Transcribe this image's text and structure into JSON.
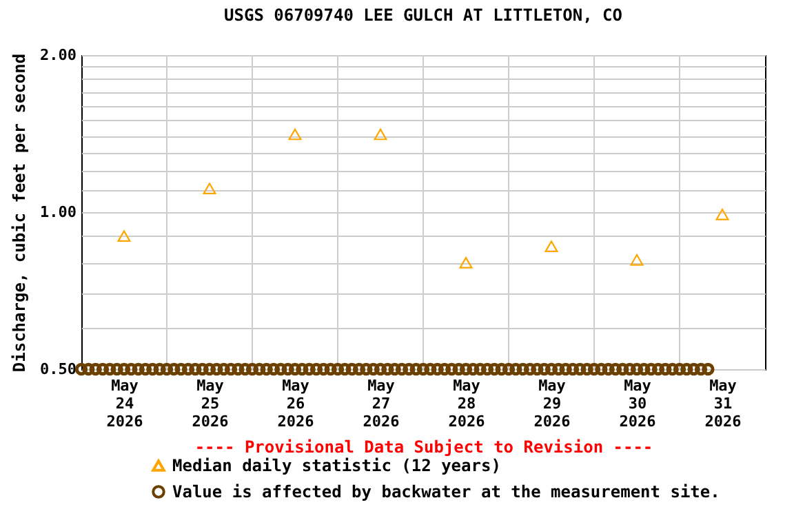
{
  "chart_data": {
    "type": "scatter",
    "title": "USGS 06709740 LEE GULCH AT LITTLETON, CO",
    "ylabel": "Discharge, cubic feet per second",
    "annotations": [
      "---- Provisional Data Subject to Revision ----"
    ],
    "log": "y",
    "grid": true,
    "legend": "bottom",
    "xlim": [
      "2026-05-24T00:00",
      "2026-06-01T00:00"
    ],
    "xticks": [
      {
        "value": "2026-05-24T12:00",
        "label": "May 24 2026"
      },
      {
        "value": "2026-05-25T00:00",
        "label": null
      },
      {
        "value": "2026-05-25T12:00",
        "label": "May 25 2026"
      },
      {
        "value": "2026-05-26T00:00",
        "label": null
      },
      {
        "value": "2026-05-26T12:00",
        "label": "May 26 2026"
      },
      {
        "value": "2026-05-27T00:00",
        "label": null
      },
      {
        "value": "2026-05-27T12:00",
        "label": "May 27 2026"
      },
      {
        "value": "2026-05-28T00:00",
        "label": null
      },
      {
        "value": "2026-05-28T12:00",
        "label": "May 28 2026"
      },
      {
        "value": "2026-05-29T00:00",
        "label": null
      },
      {
        "value": "2026-05-29T12:00",
        "label": "May 29 2026"
      },
      {
        "value": "2026-05-30T00:00",
        "label": null
      },
      {
        "value": "2026-05-30T12:00",
        "label": "May 30 2026"
      },
      {
        "value": "2026-05-31T00:00",
        "label": null
      },
      {
        "value": "2026-05-31T12:00",
        "label": "May 31 2026"
      }
    ],
    "ylim": [
      0.5,
      2.0
    ],
    "yticks": [
      {
        "value": 0.5,
        "label": "0.50"
      },
      {
        "value": 0.6,
        "label": null
      },
      {
        "value": 0.7,
        "label": null
      },
      {
        "value": 0.8,
        "label": null
      },
      {
        "value": 0.9,
        "label": null
      },
      {
        "value": 1.0,
        "label": "1.00"
      },
      {
        "value": 1.1,
        "label": null
      },
      {
        "value": 1.2,
        "label": null
      },
      {
        "value": 1.3,
        "label": null
      },
      {
        "value": 1.4,
        "label": null
      },
      {
        "value": 1.5,
        "label": null
      },
      {
        "value": 1.6,
        "label": null
      },
      {
        "value": 1.7,
        "label": null
      },
      {
        "value": 1.8,
        "label": null
      },
      {
        "value": 1.9,
        "label": null
      },
      {
        "value": 2.0,
        "label": "2.00"
      }
    ],
    "series": [
      {
        "name": "Median daily statistic (12 years)",
        "marker": "triangle",
        "color": "#ffa500",
        "x": [
          "2026-05-24T12:00",
          "2026-05-25T12:00",
          "2026-05-26T12:00",
          "2026-05-27T12:00",
          "2026-05-28T12:00",
          "2026-05-29T12:00",
          "2026-05-30T12:00",
          "2026-05-31T12:00"
        ],
        "values": [
          0.9,
          1.11,
          1.41,
          1.41,
          0.8,
          0.86,
          0.81,
          0.99
        ]
      },
      {
        "name": "Value is affected by backwater at the measurement site.",
        "marker": "circle",
        "color": "#6b4000",
        "x": [
          "2026-05-24T00:00",
          "2026-05-24T02:00",
          "2026-05-24T04:00",
          "2026-05-24T06:00",
          "2026-05-24T08:00",
          "2026-05-24T10:00",
          "2026-05-24T12:00",
          "2026-05-24T14:00",
          "2026-05-24T16:00",
          "2026-05-24T18:00",
          "2026-05-24T20:00",
          "2026-05-24T22:00",
          "2026-05-25T00:00",
          "2026-05-25T02:00",
          "2026-05-25T04:00",
          "2026-05-25T06:00",
          "2026-05-25T08:00",
          "2026-05-25T10:00",
          "2026-05-25T12:00",
          "2026-05-25T14:00",
          "2026-05-25T16:00",
          "2026-05-25T18:00",
          "2026-05-25T20:00",
          "2026-05-25T22:00",
          "2026-05-26T00:00",
          "2026-05-26T02:00",
          "2026-05-26T04:00",
          "2026-05-26T06:00",
          "2026-05-26T08:00",
          "2026-05-26T10:00",
          "2026-05-26T12:00",
          "2026-05-26T14:00",
          "2026-05-26T16:00",
          "2026-05-26T18:00",
          "2026-05-26T20:00",
          "2026-05-26T22:00",
          "2026-05-27T00:00",
          "2026-05-27T02:00",
          "2026-05-27T04:00",
          "2026-05-27T06:00",
          "2026-05-27T08:00",
          "2026-05-27T10:00",
          "2026-05-27T12:00",
          "2026-05-27T14:00",
          "2026-05-27T16:00",
          "2026-05-27T18:00",
          "2026-05-27T20:00",
          "2026-05-27T22:00",
          "2026-05-28T00:00",
          "2026-05-28T02:00",
          "2026-05-28T04:00",
          "2026-05-28T06:00",
          "2026-05-28T08:00",
          "2026-05-28T10:00",
          "2026-05-28T12:00",
          "2026-05-28T14:00",
          "2026-05-28T16:00",
          "2026-05-28T18:00",
          "2026-05-28T20:00",
          "2026-05-28T22:00",
          "2026-05-29T00:00",
          "2026-05-29T02:00",
          "2026-05-29T04:00",
          "2026-05-29T06:00",
          "2026-05-29T08:00",
          "2026-05-29T10:00",
          "2026-05-29T12:00",
          "2026-05-29T14:00",
          "2026-05-29T16:00",
          "2026-05-29T18:00",
          "2026-05-29T20:00",
          "2026-05-29T22:00",
          "2026-05-30T00:00",
          "2026-05-30T02:00",
          "2026-05-30T04:00",
          "2026-05-30T06:00",
          "2026-05-30T08:00",
          "2026-05-30T10:00",
          "2026-05-30T12:00",
          "2026-05-30T14:00",
          "2026-05-30T16:00",
          "2026-05-30T18:00",
          "2026-05-30T20:00",
          "2026-05-30T22:00",
          "2026-05-31T00:00",
          "2026-05-31T02:00",
          "2026-05-31T04:00",
          "2026-05-31T06:00",
          "2026-05-31T08:00"
        ],
        "values": [
          0.5,
          0.5,
          0.5,
          0.5,
          0.5,
          0.5,
          0.5,
          0.5,
          0.5,
          0.5,
          0.5,
          0.5,
          0.5,
          0.5,
          0.5,
          0.5,
          0.5,
          0.5,
          0.5,
          0.5,
          0.5,
          0.5,
          0.5,
          0.5,
          0.5,
          0.5,
          0.5,
          0.5,
          0.5,
          0.5,
          0.5,
          0.5,
          0.5,
          0.5,
          0.5,
          0.5,
          0.5,
          0.5,
          0.5,
          0.5,
          0.5,
          0.5,
          0.5,
          0.5,
          0.5,
          0.5,
          0.5,
          0.5,
          0.5,
          0.5,
          0.5,
          0.5,
          0.5,
          0.5,
          0.5,
          0.5,
          0.5,
          0.5,
          0.5,
          0.5,
          0.5,
          0.5,
          0.5,
          0.5,
          0.5,
          0.5,
          0.5,
          0.5,
          0.5,
          0.5,
          0.5,
          0.5,
          0.5,
          0.5,
          0.5,
          0.5,
          0.5,
          0.5,
          0.5,
          0.5,
          0.5,
          0.5,
          0.5,
          0.5,
          0.5,
          0.5,
          0.5,
          0.5,
          0.5
        ]
      }
    ]
  }
}
